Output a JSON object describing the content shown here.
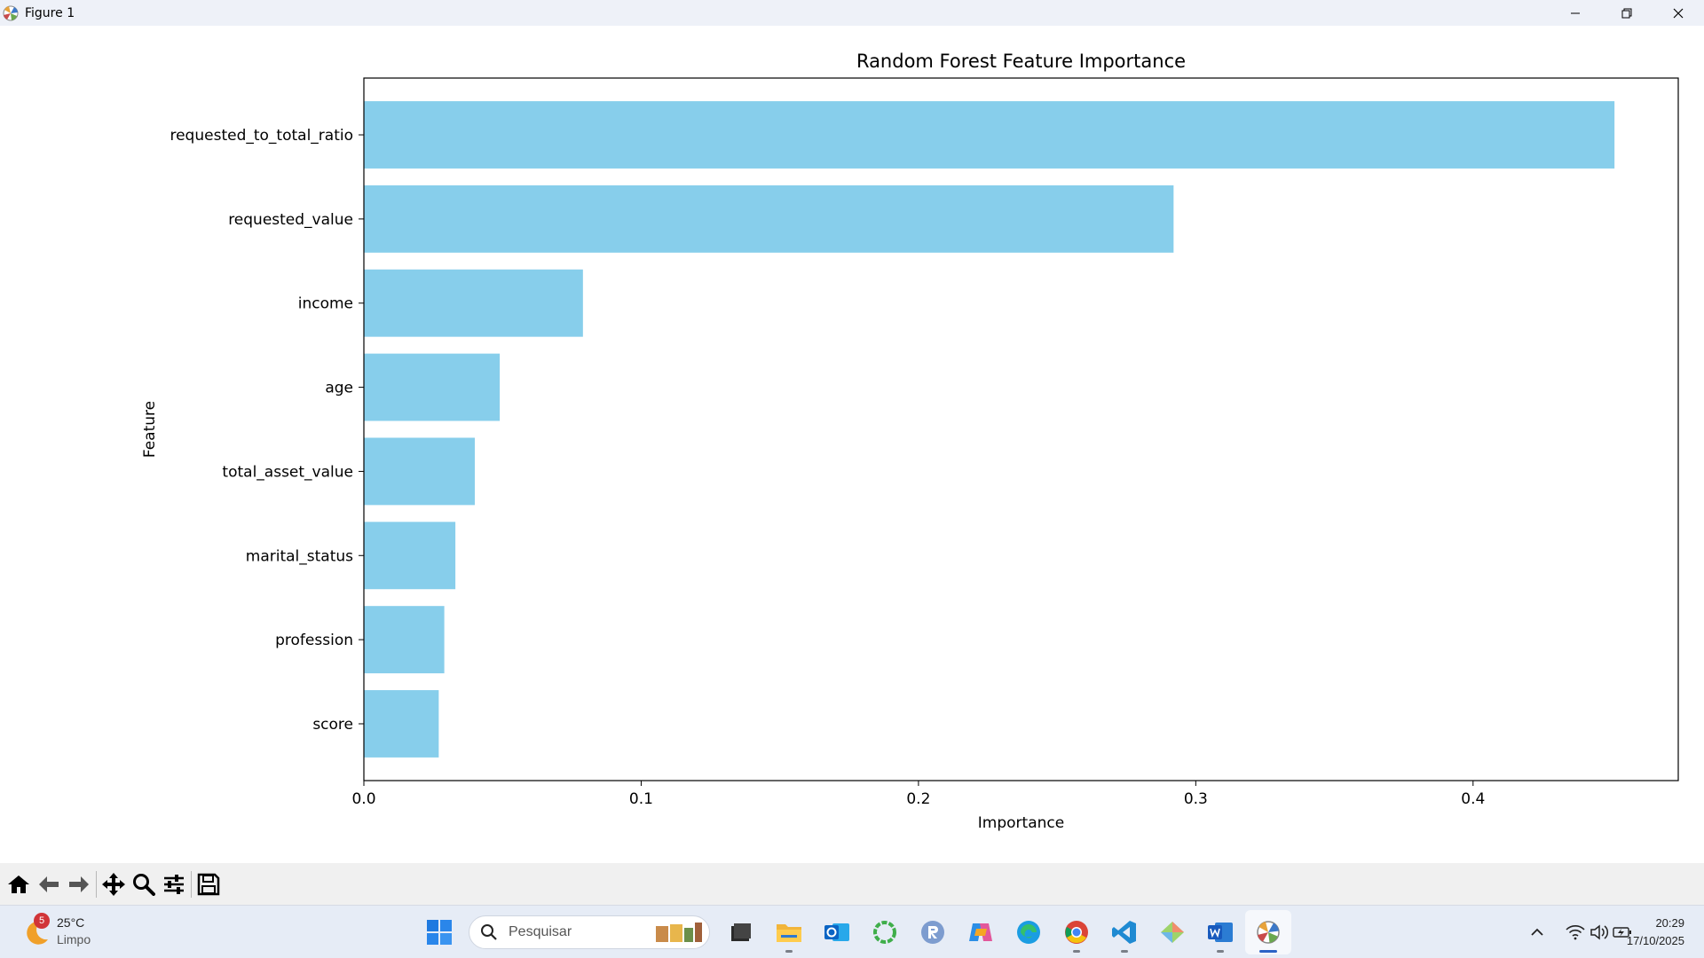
{
  "window": {
    "title": "Figure 1"
  },
  "chart_data": {
    "type": "bar",
    "orientation": "horizontal",
    "title": "Random Forest Feature Importance",
    "xlabel": "Importance",
    "ylabel": "Feature",
    "categories": [
      "requested_to_total_ratio",
      "requested_value",
      "income",
      "age",
      "total_asset_value",
      "marital_status",
      "profession",
      "score"
    ],
    "values": [
      0.451,
      0.292,
      0.079,
      0.049,
      0.04,
      0.033,
      0.029,
      0.027
    ],
    "xlim": [
      0.0,
      0.474
    ],
    "xticks": [
      "0.0",
      "0.1",
      "0.2",
      "0.3",
      "0.4"
    ],
    "bar_color": "#87ceeb",
    "grid": false,
    "legend": "none"
  },
  "toolbar": {
    "buttons": [
      "home-icon",
      "back-icon",
      "forward-icon",
      "pan-icon",
      "zoom-icon",
      "configure-icon",
      "save-icon"
    ]
  },
  "taskbar": {
    "weather": {
      "temp": "25°C",
      "condition": "Limpo",
      "badge": "5"
    },
    "search_placeholder": "Pesquisar",
    "apps": [
      "windows-start",
      "file-manager",
      "file-explorer",
      "outlook",
      "copilot-ring",
      "r-app",
      "copilot",
      "edge",
      "chrome",
      "vscode",
      "git-app",
      "word",
      "matplotlib-figure"
    ],
    "clock": {
      "time": "20:29",
      "date": "17/10/2025"
    }
  },
  "colors": {
    "accent": "#2b63c6",
    "taskbar_bg": "#e6ecf6",
    "titlebar_bg": "#eef1f8"
  }
}
